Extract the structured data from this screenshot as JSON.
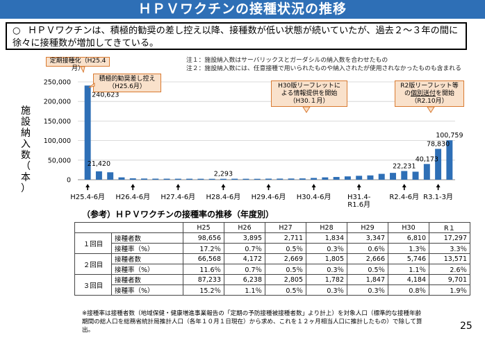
{
  "title": "ＨＰＶワクチンの接種状況の推移",
  "summary": {
    "bullet": "○",
    "text": "ＨＰＶワクチンは、積極的勧奨の差し控え以降、接種数が低い状態が続いていたが、過去２～３年の間に徐々に接種数が増加してきている。"
  },
  "notes": [
    "注１：施設納入数はサーバリックスとガーダシルの納入数を合わせたもの",
    "注２：施設納入数には、任意接種で用いられたものや納入されたが使用されなかったものも含まれる"
  ],
  "chart_data": {
    "type": "bar",
    "ylabel": "施設納入数（本）",
    "ylim": [
      0,
      250000
    ],
    "yticks": [
      "0",
      "50,000",
      "100,000",
      "150,000",
      "200,000",
      "250,000"
    ],
    "ytick_values": [
      0,
      50000,
      100000,
      150000,
      200000,
      250000
    ],
    "grid": true,
    "color": "#2e6fb6",
    "x_ticks": [
      "H25.4-6月",
      "H26.4-6月",
      "H27.4-6月",
      "H28.4-6月",
      "H29.4-6月",
      "H30.4-6月",
      "H31.4-\nR1.6月",
      "R2.4-6月",
      "R3.1-3月"
    ],
    "x_tick_index": [
      0,
      4,
      8,
      12,
      16,
      20,
      24,
      28,
      31
    ],
    "values": [
      240623,
      21420,
      19000,
      6000,
      3500,
      3000,
      2700,
      2600,
      2500,
      2500,
      2400,
      2300,
      2293,
      2500,
      2400,
      2300,
      2700,
      2800,
      3000,
      3300,
      4500,
      6000,
      7000,
      8500,
      10000,
      11000,
      15000,
      17500,
      22231,
      20500,
      40173,
      78830,
      100759
    ],
    "data_labels": [
      {
        "index": 0,
        "text": "240,623"
      },
      {
        "index": 1,
        "text": "21,420"
      },
      {
        "index": 12,
        "text": "2,293"
      },
      {
        "index": 28,
        "text": "22,231"
      },
      {
        "index": 30,
        "text": "40,173"
      },
      {
        "index": 31,
        "text": "78,830"
      },
      {
        "index": 32,
        "text": "100,759"
      }
    ]
  },
  "callouts": {
    "c1": "定期接種化（H25.4月）",
    "c2_line1": "積極的勧奨差し控え",
    "c2_line2": "（H25.6月）",
    "c3_line1": "H30版リーフレットに",
    "c3_line2": "よる情報提供を開始",
    "c3_line3": "（H30.１月）",
    "c4_line1": "R2版リーフレット等",
    "c4_line2_pre": "の",
    "c4_line2_ul": "個別送付",
    "c4_line2_post": "を開始",
    "c4_line3": "（R2.10月）"
  },
  "table": {
    "section_title": "（参考）ＨＰＶワクチンの接種率の推移（年度別）",
    "years": [
      "H25",
      "H26",
      "H27",
      "H28",
      "H29",
      "H30",
      "R１"
    ],
    "rows": [
      {
        "group": "１回目",
        "label": "接種者数",
        "values": [
          "98,656",
          "3,895",
          "2,711",
          "1,834",
          "3,347",
          "6,810",
          "17,297"
        ]
      },
      {
        "group": "",
        "label": "接種率（%）",
        "values": [
          "17.2％",
          "0.7％",
          "0.5％",
          "0.3％",
          "0.6％",
          "1.3％",
          "3.3％"
        ]
      },
      {
        "group": "２回目",
        "label": "接種者数",
        "values": [
          "66,568",
          "4,172",
          "2,669",
          "1,805",
          "2,666",
          "5,746",
          "13,571"
        ]
      },
      {
        "group": "",
        "label": "接種率（%）",
        "values": [
          "11.6％",
          "0.7％",
          "0.5％",
          "0.3％",
          "0.5％",
          "1.1％",
          "2.6％"
        ]
      },
      {
        "group": "３回目",
        "label": "接種者数",
        "values": [
          "87,233",
          "6,238",
          "2,805",
          "1,782",
          "1,847",
          "4,184",
          "9,701"
        ]
      },
      {
        "group": "",
        "label": "接種率（%）",
        "values": [
          "15.2％",
          "1.1％",
          "0.5％",
          "0.3％",
          "0.3％",
          "0.8％",
          "1.9％"
        ]
      }
    ]
  },
  "footnote": "※接種率は接種者数（地域保健・健康増進事業報告の「定期の予防接種被接種者数」より計上）を対象人口（標準的な接種年齢期間の総人口を総務省統計局推計人口（各年１０月１日現在）から求め、これを１２ヶ月相当人口に推計したもの）で除して算出。",
  "page_number": "25"
}
